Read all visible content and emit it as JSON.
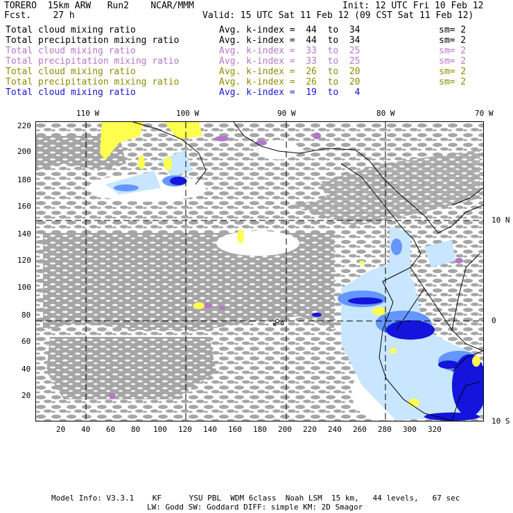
{
  "header": {
    "model": "TORERO  15km ARW   Run2    NCAR/MMM",
    "init": "Init: 12 UTC Fri 10 Feb 12",
    "fcst": "Fcst.    27 h",
    "valid": "Valid: 15 UTC Sat 11 Feb 12 (09 CST Sat 11 Feb 12)"
  },
  "legend": [
    {
      "field": "Total cloud mixing ratio",
      "kindex": "Avg. k-index =  44  to  34",
      "sm": "sm= 2",
      "color": "#000000"
    },
    {
      "field": "Total precipitation mixing ratio",
      "kindex": "Avg. k-index =  44  to  34",
      "sm": "sm= 2",
      "color": "#000000"
    },
    {
      "field": "Total cloud mixing ratio",
      "kindex": "Avg. k-index =  33  to  25",
      "sm": "sm= 2",
      "color": "#b478c8"
    },
    {
      "field": "Total precipitation mixing ratio",
      "kindex": "Avg. k-index =  33  to  25",
      "sm": "sm= 2",
      "color": "#b478c8"
    },
    {
      "field": "Total cloud mixing ratio",
      "kindex": "Avg. k-index =  26  to  20",
      "sm": "sm= 2",
      "color": "#8c8c00"
    },
    {
      "field": "Total precipitation mixing ratio",
      "kindex": "Avg. k-index =  26  to  20",
      "sm": "sm= 2",
      "color": "#8c8c00"
    },
    {
      "field": "Total cloud mixing ratio",
      "kindex": "Avg. k-index =  19  to   4",
      "sm": "",
      "color": "#1414dc"
    }
  ],
  "axes": {
    "lon_labels": [
      "110 W",
      "100 W",
      "90 W",
      "80 W",
      "70 W"
    ],
    "lat_labels": [
      "10 N",
      "0",
      "10 S"
    ],
    "x_ticks": [
      "20",
      "40",
      "60",
      "80",
      "100",
      "120",
      "140",
      "160",
      "180",
      "200",
      "220",
      "240",
      "260",
      "280",
      "300",
      "320"
    ],
    "y_ticks": [
      "220",
      "200",
      "180",
      "160",
      "140",
      "120",
      "100",
      "80",
      "60",
      "40",
      "20"
    ]
  },
  "colors": {
    "gray": "#a6a6a6",
    "purple": "#b478c8",
    "yellow": "#ffff50",
    "lightblue": "#c8e6ff",
    "midblue": "#6496ff",
    "darkblue": "#1414dc"
  },
  "footer": {
    "line1": "Model Info: V3.3.1    KF      YSU PBL  WDM 6class  Noah LSM  15 km,   44 levels,   67 sec",
    "line2": "LW: Godd SW: Goddard DIFF: simple KM: 2D Smagor"
  }
}
